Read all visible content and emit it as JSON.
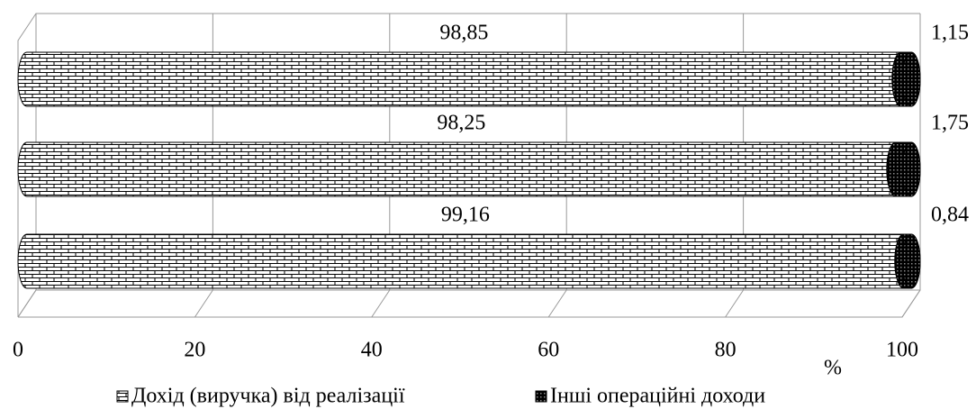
{
  "chart_data": {
    "type": "bar3d",
    "orientation": "horizontal",
    "stacked": true,
    "categories": [
      null,
      null,
      null
    ],
    "series": [
      {
        "name": "Дохід (виручка) від реалізації",
        "color": "#ffffff",
        "values": [
          98.85,
          98.25,
          99.16
        ],
        "value_labels": [
          "98,85",
          "98,25",
          "99,16"
        ]
      },
      {
        "name": "Інші операційні доходи",
        "color": "#000000",
        "values": [
          1.15,
          1.75,
          0.84
        ],
        "value_labels": [
          "1,15",
          "1,75",
          "0,84"
        ]
      }
    ],
    "x_label": "%",
    "xlim": [
      0,
      100
    ],
    "xticks": [
      0,
      20,
      40,
      60,
      80,
      100
    ],
    "grid": true,
    "legend": "bottom"
  }
}
